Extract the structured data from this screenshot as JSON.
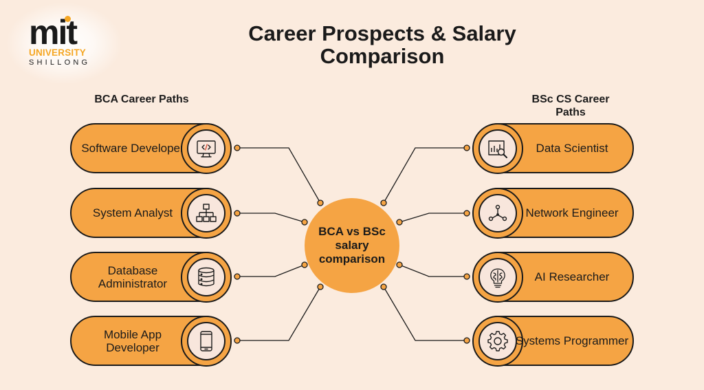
{
  "logo": {
    "brand": "mit",
    "university": "UNIVERSITY",
    "city": "SHILLONG"
  },
  "title": "Career Prospects & Salary Comparison",
  "left": {
    "heading": "BCA Career Paths",
    "items": [
      {
        "label": "Software Developer",
        "icon": "code-monitor-icon"
      },
      {
        "label": "System Analyst",
        "icon": "hierarchy-icon"
      },
      {
        "label": "Database Administrator",
        "icon": "database-icon"
      },
      {
        "label": "Mobile App Developer",
        "icon": "smartphone-icon"
      }
    ]
  },
  "right": {
    "heading": "BSc CS Career Paths",
    "items": [
      {
        "label": "Data Scientist",
        "icon": "data-analysis-icon"
      },
      {
        "label": "Network Engineer",
        "icon": "network-icon"
      },
      {
        "label": "AI Researcher",
        "icon": "brain-bulb-icon"
      },
      {
        "label": "Systems Programmer",
        "icon": "gear-icon"
      }
    ]
  },
  "hub": {
    "label": "BCA vs BSc salary comparison"
  },
  "colors": {
    "background": "#fbebde",
    "accent": "#f5a444",
    "ink": "#1a1a1a",
    "icon_disc": "#f8e6dc"
  }
}
